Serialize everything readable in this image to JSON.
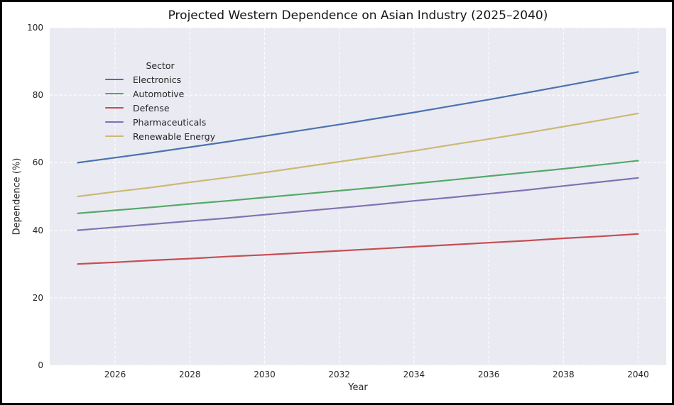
{
  "figure": {
    "border_color": "#000000",
    "background_color": "#ffffff",
    "plot_background_color": "#eaeaf2",
    "gridline_color": "#ffffff",
    "text_color": "#262626"
  },
  "chart_data": {
    "type": "line",
    "title": "Projected Western Dependence on Asian Industry (2025–2040)",
    "xlabel": "Year",
    "ylabel": "Dependence (%)",
    "legend_title": "Sector",
    "legend_position": "upper left",
    "grid": true,
    "gridline_style": "dashed",
    "xlim": [
      2024.25,
      2040.75
    ],
    "ylim": [
      0,
      100
    ],
    "xticks": [
      2026,
      2028,
      2030,
      2032,
      2034,
      2036,
      2038,
      2040
    ],
    "yticks": [
      0,
      20,
      40,
      60,
      80,
      100
    ],
    "x": [
      2025,
      2026,
      2027,
      2028,
      2029,
      2030,
      2031,
      2032,
      2033,
      2034,
      2035,
      2036,
      2037,
      2038,
      2039,
      2040
    ],
    "series": [
      {
        "name": "Electronics",
        "color": "#4C72B0",
        "values": [
          60.0,
          61.5,
          63.0,
          64.6,
          66.2,
          67.9,
          69.6,
          71.3,
          73.1,
          74.9,
          76.8,
          78.7,
          80.7,
          82.7,
          84.8,
          86.9
        ]
      },
      {
        "name": "Automotive",
        "color": "#55A868",
        "values": [
          45.0,
          45.9,
          46.8,
          47.8,
          48.7,
          49.7,
          50.7,
          51.7,
          52.7,
          53.8,
          54.9,
          56.0,
          57.1,
          58.2,
          59.4,
          60.6
        ]
      },
      {
        "name": "Defense",
        "color": "#C44E52",
        "values": [
          30.0,
          30.5,
          31.1,
          31.6,
          32.2,
          32.7,
          33.3,
          33.9,
          34.5,
          35.1,
          35.7,
          36.3,
          36.9,
          37.6,
          38.2,
          38.9
        ]
      },
      {
        "name": "Pharmaceuticals",
        "color": "#8172B2",
        "values": [
          40.0,
          40.9,
          41.8,
          42.7,
          43.6,
          44.6,
          45.6,
          46.6,
          47.6,
          48.7,
          49.7,
          50.8,
          51.9,
          53.1,
          54.3,
          55.5
        ]
      },
      {
        "name": "Renewable Energy",
        "color": "#CCB974",
        "values": [
          50.0,
          51.4,
          52.7,
          54.2,
          55.6,
          57.1,
          58.7,
          60.3,
          61.9,
          63.5,
          65.3,
          67.0,
          68.8,
          70.7,
          72.6,
          74.6
        ]
      }
    ]
  }
}
